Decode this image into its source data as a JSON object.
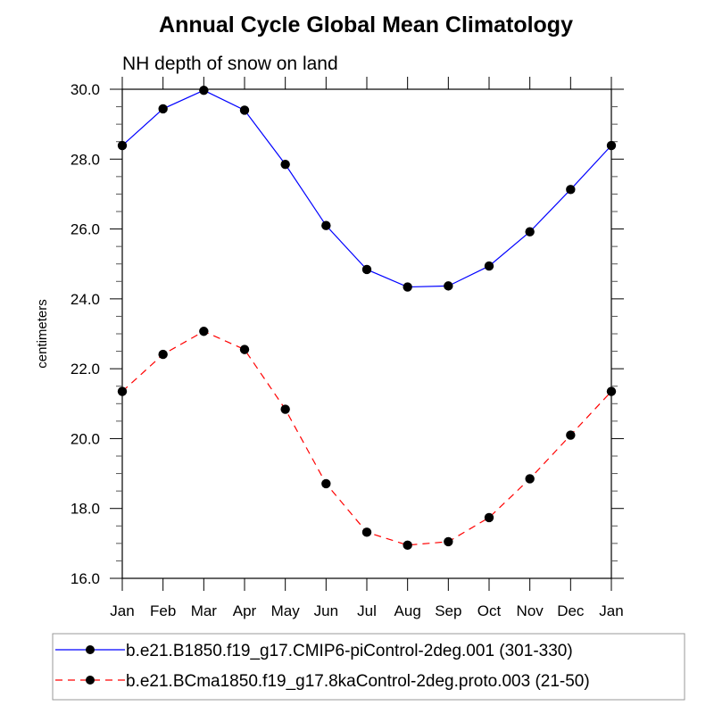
{
  "chart_data": {
    "type": "line",
    "title": "Annual Cycle Global Mean Climatology",
    "subtitle": "NH depth of snow on land",
    "xlabel": "",
    "ylabel": "centimeters",
    "categories": [
      "Jan",
      "Feb",
      "Mar",
      "Apr",
      "May",
      "Jun",
      "Jul",
      "Aug",
      "Sep",
      "Oct",
      "Nov",
      "Dec",
      "Jan"
    ],
    "ylim": [
      16.0,
      30.0
    ],
    "yticks": [
      16.0,
      18.0,
      20.0,
      22.0,
      24.0,
      26.0,
      28.0,
      30.0
    ],
    "ytick_labels": [
      "16.0",
      "18.0",
      "20.0",
      "22.0",
      "24.0",
      "26.0",
      "28.0",
      "30.0"
    ],
    "yminor_step": 0.5,
    "grid": false,
    "legend_position": "bottom",
    "series": [
      {
        "name": "b.e21.B1850.f19_g17.CMIP6-piControl-2deg.001 (301-330)",
        "color": "#0000ff",
        "line_style": "solid",
        "marker": "filled-circle",
        "marker_color": "#000000",
        "values": [
          28.39,
          29.44,
          29.97,
          29.4,
          27.85,
          26.1,
          24.84,
          24.34,
          24.37,
          24.94,
          25.92,
          27.13,
          28.39
        ]
      },
      {
        "name": "b.e21.BCma1850.f19_g17.8kaControl-2deg.proto.003 (21-50)",
        "color": "#ff0000",
        "line_style": "dashed",
        "marker": "filled-circle",
        "marker_color": "#000000",
        "values": [
          21.35,
          22.41,
          23.07,
          22.55,
          20.84,
          18.71,
          17.32,
          16.95,
          17.05,
          17.74,
          18.85,
          20.1,
          21.35
        ]
      }
    ]
  }
}
